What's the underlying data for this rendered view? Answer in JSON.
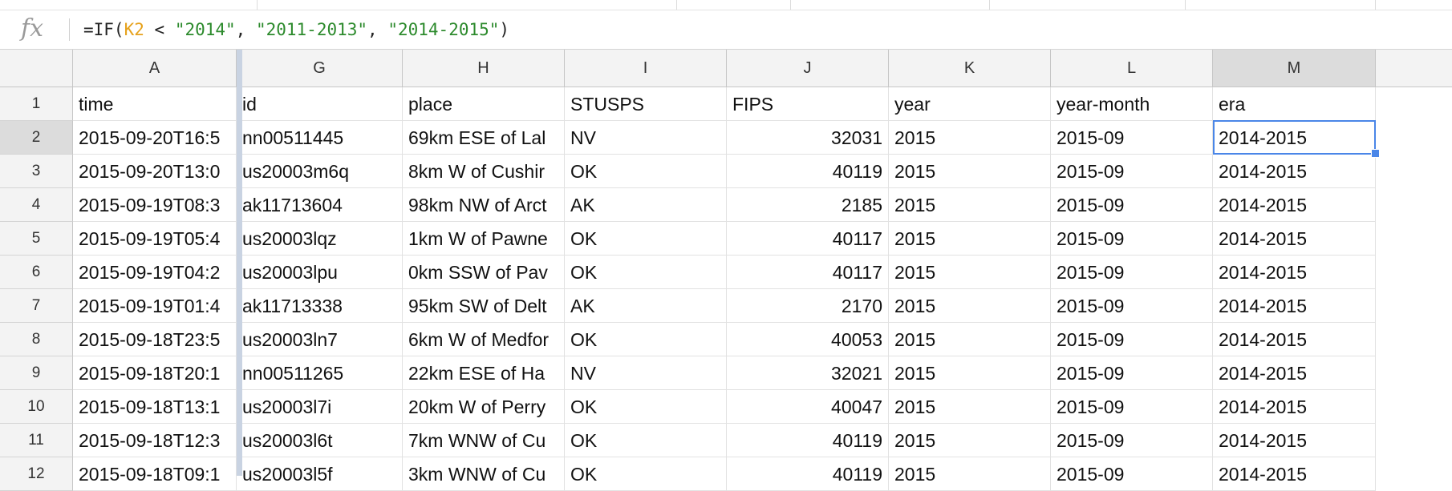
{
  "formula_bar": {
    "icon": "fx-icon",
    "fx_label": "fx",
    "formula": [
      {
        "text": "=IF(",
        "kind": "plain"
      },
      {
        "text": "K2",
        "kind": "ref"
      },
      {
        "text": " < ",
        "kind": "plain"
      },
      {
        "text": "\"2014\"",
        "kind": "str"
      },
      {
        "text": ", ",
        "kind": "plain"
      },
      {
        "text": "\"2011-2013\"",
        "kind": "str"
      },
      {
        "text": ", ",
        "kind": "plain"
      },
      {
        "text": "\"2014-2015\"",
        "kind": "str"
      },
      {
        "text": ")",
        "kind": "plain"
      }
    ]
  },
  "columns": [
    {
      "letter": "A",
      "align": "left"
    },
    {
      "letter": "G",
      "align": "left"
    },
    {
      "letter": "H",
      "align": "left"
    },
    {
      "letter": "I",
      "align": "left"
    },
    {
      "letter": "J",
      "align": "right"
    },
    {
      "letter": "K",
      "align": "left"
    },
    {
      "letter": "L",
      "align": "left"
    },
    {
      "letter": "M",
      "align": "left"
    }
  ],
  "active_column": "M",
  "active_row": "2",
  "rows": [
    {
      "num": "1",
      "cells": [
        "time",
        "id",
        "place",
        "STUSPS",
        "FIPS",
        "year",
        "year-month",
        "era"
      ],
      "header": true
    },
    {
      "num": "2",
      "cells": [
        "2015-09-20T16:5",
        "nn00511445",
        "69km ESE of Lal",
        "NV",
        "32031",
        "2015",
        "2015-09",
        "2014-2015"
      ]
    },
    {
      "num": "3",
      "cells": [
        "2015-09-20T13:0",
        "us20003m6q",
        "8km W of Cushir",
        "OK",
        "40119",
        "2015",
        "2015-09",
        "2014-2015"
      ]
    },
    {
      "num": "4",
      "cells": [
        "2015-09-19T08:3",
        "ak11713604",
        "98km NW of Arct",
        "AK",
        "2185",
        "2015",
        "2015-09",
        "2014-2015"
      ]
    },
    {
      "num": "5",
      "cells": [
        "2015-09-19T05:4",
        "us20003lqz",
        "1km W of Pawne",
        "OK",
        "40117",
        "2015",
        "2015-09",
        "2014-2015"
      ]
    },
    {
      "num": "6",
      "cells": [
        "2015-09-19T04:2",
        "us20003lpu",
        "0km SSW of Pav",
        "OK",
        "40117",
        "2015",
        "2015-09",
        "2014-2015"
      ]
    },
    {
      "num": "7",
      "cells": [
        "2015-09-19T01:4",
        "ak11713338",
        "95km SW of Delt",
        "AK",
        "2170",
        "2015",
        "2015-09",
        "2014-2015"
      ]
    },
    {
      "num": "8",
      "cells": [
        "2015-09-18T23:5",
        "us20003ln7",
        "6km W of Medfor",
        "OK",
        "40053",
        "2015",
        "2015-09",
        "2014-2015"
      ]
    },
    {
      "num": "9",
      "cells": [
        "2015-09-18T20:1",
        "nn00511265",
        "22km ESE of Ha",
        "NV",
        "32021",
        "2015",
        "2015-09",
        "2014-2015"
      ]
    },
    {
      "num": "10",
      "cells": [
        "2015-09-18T13:1",
        "us20003l7i",
        "20km W of Perry",
        "OK",
        "40047",
        "2015",
        "2015-09",
        "2014-2015"
      ]
    },
    {
      "num": "11",
      "cells": [
        "2015-09-18T12:3",
        "us20003l6t",
        "7km WNW of Cu",
        "OK",
        "40119",
        "2015",
        "2015-09",
        "2014-2015"
      ]
    },
    {
      "num": "12",
      "cells": [
        "2015-09-18T09:1",
        "us20003l5f",
        "3km WNW of Cu",
        "OK",
        "40119",
        "2015",
        "2015-09",
        "2014-2015"
      ]
    }
  ]
}
